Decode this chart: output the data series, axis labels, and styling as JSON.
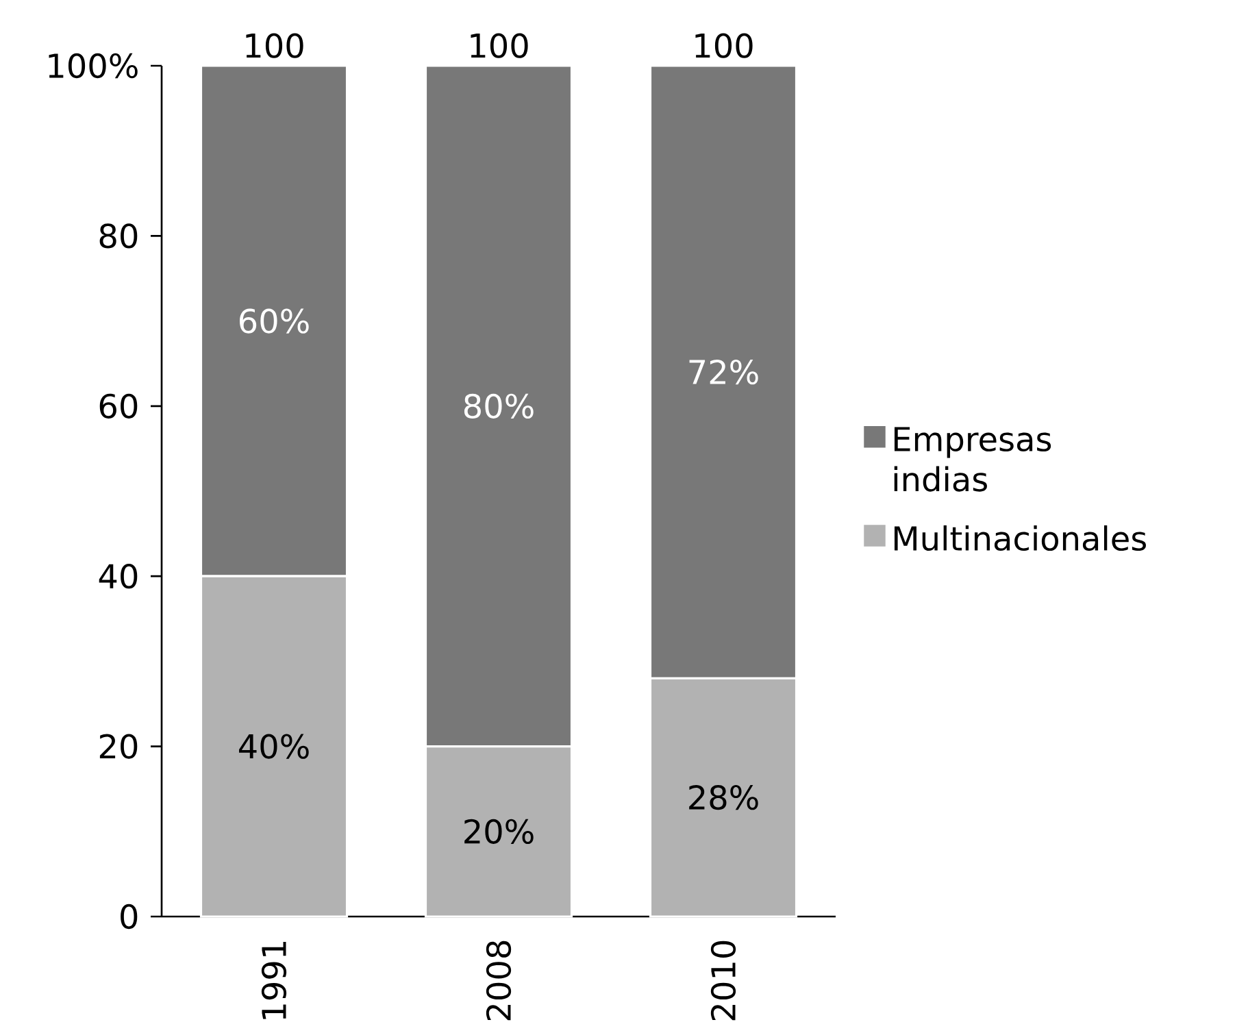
{
  "chart_data": {
    "type": "bar",
    "stacked": true,
    "categories": [
      "1991",
      "2008",
      "2010"
    ],
    "series": [
      {
        "name": "Multinacionales",
        "color": "#b2b2b2",
        "values": [
          40,
          20,
          28
        ],
        "value_labels": [
          "40%",
          "20%",
          "28%"
        ]
      },
      {
        "name": "Empresas indias",
        "color": "#787878",
        "values": [
          60,
          80,
          72
        ],
        "value_labels": [
          "60%",
          "80%",
          "72%"
        ]
      }
    ],
    "ylim": [
      0,
      100
    ],
    "yticks": [
      0,
      20,
      40,
      60,
      80,
      {
        "value": 100,
        "label": "100%"
      }
    ],
    "totals": [
      "100",
      "100",
      "100"
    ],
    "legend": "right"
  }
}
